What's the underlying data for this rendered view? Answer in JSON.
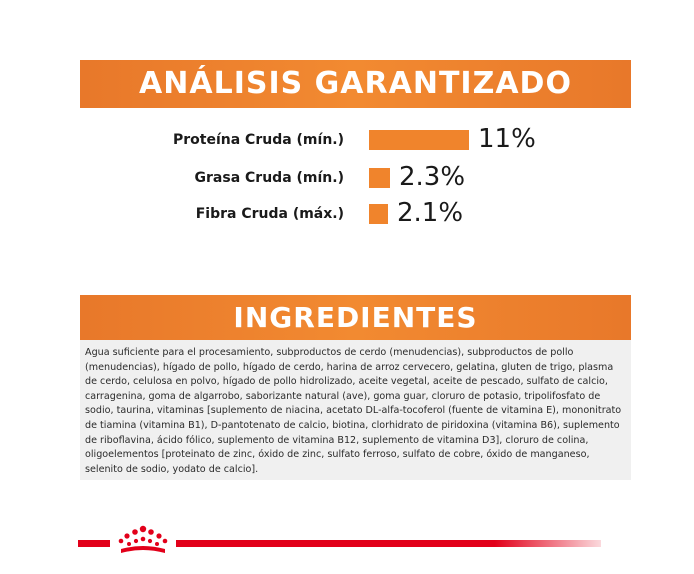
{
  "analysis": {
    "title": "ANÁLISIS GARANTIZADO",
    "bar_color": "#f0842c",
    "items": [
      {
        "label": "Proteína Cruda (mín.)",
        "value": "11%",
        "percent": 11
      },
      {
        "label": "Grasa Cruda (mín.)",
        "value": "2.3%",
        "percent": 2.3
      },
      {
        "label": "Fibra Cruda (máx.)",
        "value": "2.1%",
        "percent": 2.1
      }
    ]
  },
  "ingredients": {
    "title": "INGREDIENTES",
    "text": "Agua suficiente para el procesamiento, subproductos de cerdo (menudencias), subproductos de pollo (menudencias), hígado de pollo, hígado de cerdo, harina de arroz cervecero, gelatina, gluten de trigo, plasma de cerdo, celulosa en polvo, hígado de pollo hidrolizado, aceite vegetal, aceite de pescado, sulfato de calcio, carragenina, goma de algarrobo, saborizante natural (ave), goma guar, cloruro de potasio, tripolifosfato de sodio, taurina, vitaminas [suplemento de niacina, acetato DL-alfa-tocoferol (fuente de vitamina E), mononitrato de tiamina (vitamina B1), D-pantotenato de calcio, biotina, clorhidrato de piridoxina (vitamina B6), suplemento de riboflavina, ácido fólico, suplemento de vitamina B12, suplemento de vitamina D3], cloruro de colina, oligoelementos [proteinato de zinc, óxido de zinc, sulfato ferroso, sulfato de cobre, óxido de manganeso, selenito de sodio, yodato de calcio]."
  },
  "brand": {
    "logo_icon": "royal-canin-crown-icon",
    "accent_color": "#e2001a",
    "header_color": "#f0842c"
  }
}
